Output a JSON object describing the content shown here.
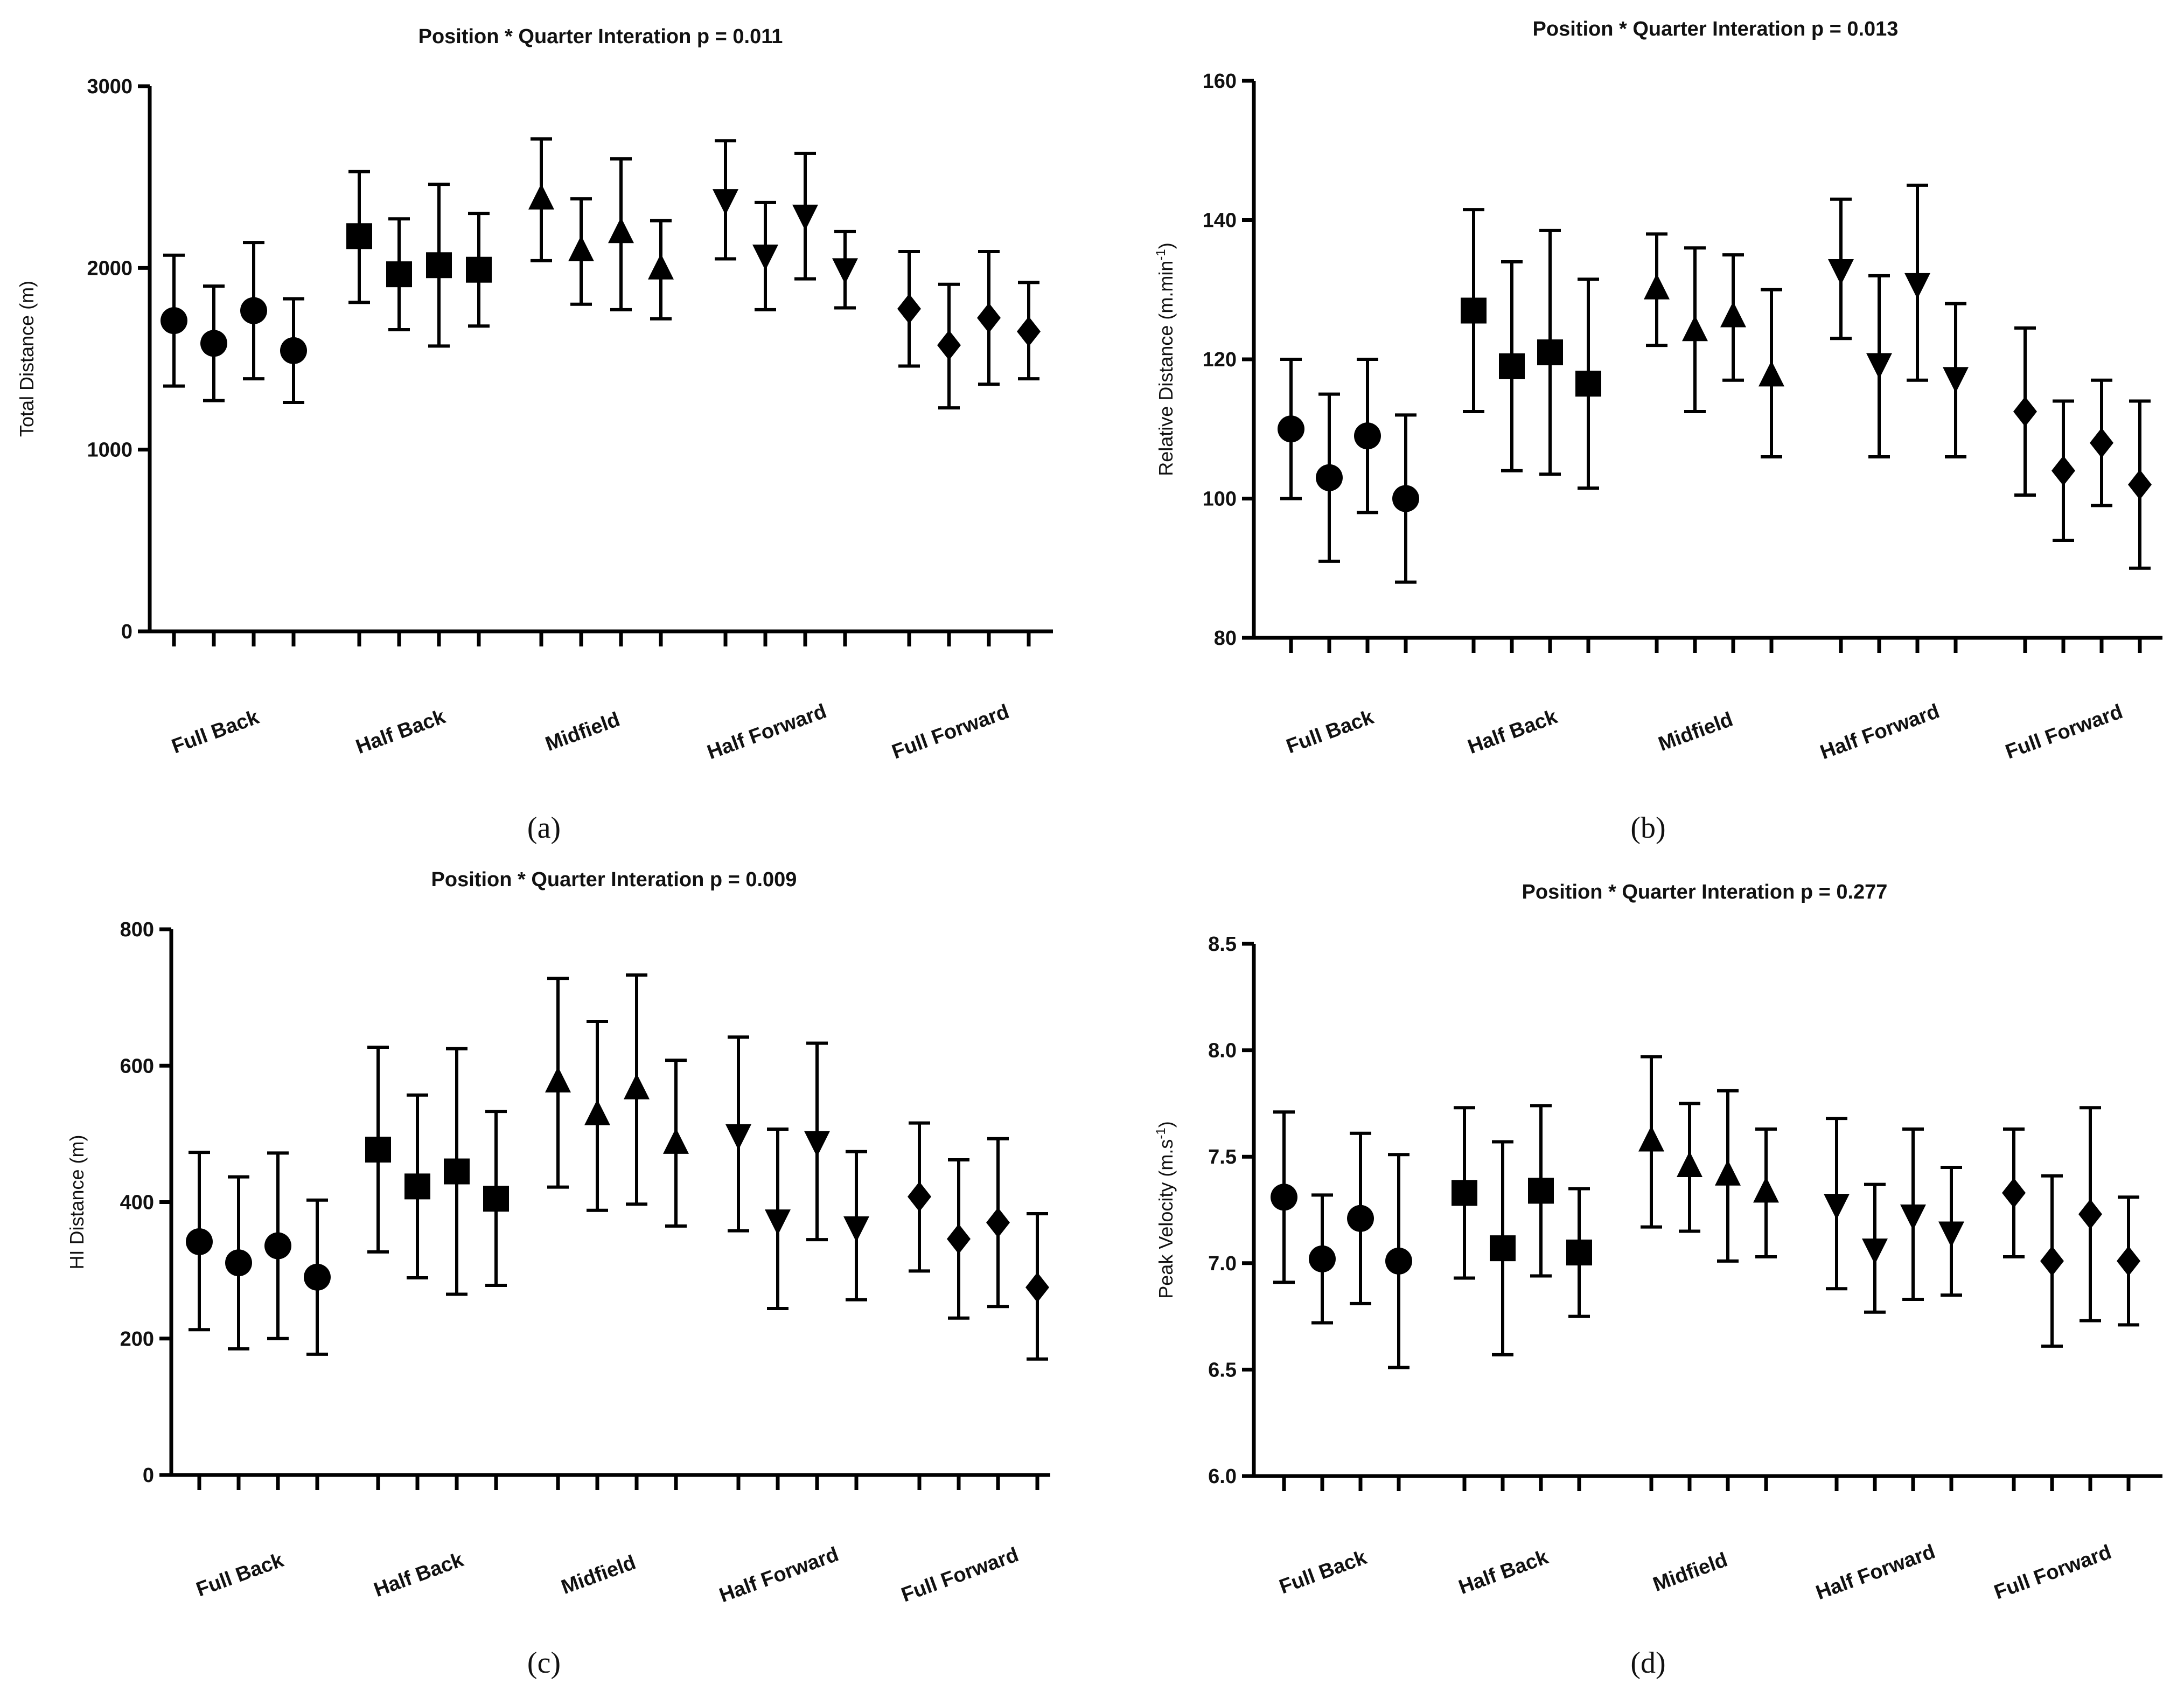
{
  "chart_data": [
    {
      "type": "scatter",
      "panel_label": "(a)",
      "title": "Position * Quarter Interation p = 0.011",
      "ylabel": "Total Distance (m)",
      "ylim": [
        0,
        3000
      ],
      "yticks": [
        0,
        1000,
        2000,
        3000
      ],
      "ytick_labels": [
        "0",
        "1000",
        "2000",
        "3000"
      ],
      "categories": [
        "Full Back",
        "Half Back",
        "Midfield",
        "Half Forward",
        "Full Forward"
      ],
      "markers": [
        "circle",
        "square",
        "triangle-up",
        "triangle-down",
        "diamond"
      ],
      "series": [
        {
          "name": "Full Back",
          "means": [
            1710,
            1585,
            1765,
            1545
          ],
          "upper": [
            2070,
            1900,
            2140,
            1830
          ],
          "lower": [
            1350,
            1270,
            1390,
            1260
          ]
        },
        {
          "name": "Half Back",
          "means": [
            2175,
            1965,
            2015,
            1990
          ],
          "upper": [
            2530,
            2270,
            2460,
            2300
          ],
          "lower": [
            1810,
            1660,
            1570,
            1680
          ]
        },
        {
          "name": "Midfield",
          "means": [
            2375,
            2090,
            2190,
            1990
          ],
          "upper": [
            2710,
            2380,
            2600,
            2260
          ],
          "lower": [
            2040,
            1800,
            1770,
            1720
          ]
        },
        {
          "name": "Half Forward",
          "means": [
            2380,
            2075,
            2295,
            2000
          ],
          "upper": [
            2700,
            2360,
            2630,
            2200
          ],
          "lower": [
            2050,
            1770,
            1940,
            1780
          ]
        },
        {
          "name": "Full Forward",
          "means": [
            1775,
            1575,
            1725,
            1650
          ],
          "upper": [
            2090,
            1910,
            2090,
            1920
          ],
          "lower": [
            1460,
            1230,
            1360,
            1390
          ]
        }
      ]
    },
    {
      "type": "scatter",
      "panel_label": "(b)",
      "title": "Position * Quarter Interation p = 0.013",
      "ylabel": "Relative Distance (m.min",
      "ylabel_sup": "-1",
      "ylabel_end": ")",
      "ylim": [
        80,
        160
      ],
      "yticks": [
        80,
        100,
        120,
        140,
        160
      ],
      "ytick_labels": [
        "80",
        "100",
        "120",
        "140",
        "160"
      ],
      "categories": [
        "Full Back",
        "Half Back",
        "Midfield",
        "Half Forward",
        "Full Forward"
      ],
      "markers": [
        "circle",
        "square",
        "triangle-up",
        "triangle-down",
        "diamond"
      ],
      "series": [
        {
          "name": "Full Back",
          "means": [
            110,
            103,
            109,
            100
          ],
          "upper": [
            120,
            115,
            120,
            112
          ],
          "lower": [
            100,
            91,
            98,
            88
          ]
        },
        {
          "name": "Half Back",
          "means": [
            127,
            119,
            121,
            116.5
          ],
          "upper": [
            141.5,
            134,
            138.5,
            131.5
          ],
          "lower": [
            112.5,
            104,
            103.5,
            101.5
          ]
        },
        {
          "name": "Midfield",
          "means": [
            130,
            124,
            126,
            117.5
          ],
          "upper": [
            138,
            136,
            135,
            130
          ],
          "lower": [
            122,
            112.5,
            117,
            106
          ]
        },
        {
          "name": "Half Forward",
          "means": [
            133,
            119.5,
            131,
            117.5
          ],
          "upper": [
            143,
            132,
            145,
            128
          ],
          "lower": [
            123,
            106,
            117,
            106
          ]
        },
        {
          "name": "Full Forward",
          "means": [
            112.5,
            104,
            108,
            102
          ],
          "upper": [
            124.5,
            114,
            117,
            114
          ],
          "lower": [
            100.5,
            94,
            99,
            90
          ]
        }
      ]
    },
    {
      "type": "scatter",
      "panel_label": "(c)",
      "title": "Position * Quarter Interation p = 0.009",
      "ylabel": "HI Distance (m)",
      "ylim": [
        0,
        800
      ],
      "yticks": [
        0,
        200,
        400,
        600,
        800
      ],
      "ytick_labels": [
        "0",
        "200",
        "400",
        "600",
        "800"
      ],
      "categories": [
        "Full Back",
        "Half Back",
        "Midfield",
        "Half Forward",
        "Full Forward"
      ],
      "markers": [
        "circle",
        "square",
        "triangle-up",
        "triangle-down",
        "diamond"
      ],
      "series": [
        {
          "name": "Full Back",
          "means": [
            342,
            311,
            336,
            290
          ],
          "upper": [
            473,
            437,
            472,
            403
          ],
          "lower": [
            213,
            185,
            200,
            177
          ]
        },
        {
          "name": "Half Back",
          "means": [
            477,
            423,
            445,
            405
          ],
          "upper": [
            627,
            557,
            625,
            533
          ],
          "lower": [
            327,
            289,
            265,
            278
          ]
        },
        {
          "name": "Midfield",
          "means": [
            575,
            527,
            565,
            485
          ],
          "upper": [
            728,
            665,
            733,
            608
          ],
          "lower": [
            422,
            388,
            397,
            365
          ]
        },
        {
          "name": "Half Forward",
          "means": [
            500,
            375,
            490,
            365
          ],
          "upper": [
            642,
            507,
            633,
            474
          ],
          "lower": [
            358,
            244,
            345,
            257
          ]
        },
        {
          "name": "Full Forward",
          "means": [
            408,
            346,
            370,
            275
          ],
          "upper": [
            516,
            462,
            493,
            383
          ],
          "lower": [
            299,
            230,
            247,
            170
          ]
        }
      ]
    },
    {
      "type": "scatter",
      "panel_label": "(d)",
      "title": "Position * Quarter Interation p = 0.277",
      "ylabel": "Peak Velocity (m.s",
      "ylabel_sup": "-1",
      "ylabel_end": ")",
      "ylim": [
        6.0,
        8.5
      ],
      "yticks": [
        6.0,
        6.5,
        7.0,
        7.5,
        8.0,
        8.5
      ],
      "ytick_labels": [
        "6.0",
        "6.5",
        "7.0",
        "7.5",
        "8.0",
        "8.5"
      ],
      "categories": [
        "Full Back",
        "Half Back",
        "Midfield",
        "Half Forward",
        "Full Forward"
      ],
      "markers": [
        "circle",
        "square",
        "triangle-up",
        "triangle-down",
        "diamond"
      ],
      "series": [
        {
          "name": "Full Back",
          "means": [
            7.31,
            7.02,
            7.21,
            7.01
          ],
          "upper": [
            7.71,
            7.32,
            7.61,
            7.51
          ],
          "lower": [
            6.91,
            6.72,
            6.81,
            6.51
          ]
        },
        {
          "name": "Half Back",
          "means": [
            7.33,
            7.07,
            7.34,
            7.05
          ],
          "upper": [
            7.73,
            7.57,
            7.74,
            7.35
          ],
          "lower": [
            6.93,
            6.57,
            6.94,
            6.75
          ]
        },
        {
          "name": "Midfield",
          "means": [
            7.57,
            7.45,
            7.41,
            7.33
          ],
          "upper": [
            7.97,
            7.75,
            7.81,
            7.63
          ],
          "lower": [
            7.17,
            7.15,
            7.01,
            7.03
          ]
        },
        {
          "name": "Half Forward",
          "means": [
            7.28,
            7.07,
            7.23,
            7.15
          ],
          "upper": [
            7.68,
            7.37,
            7.63,
            7.45
          ],
          "lower": [
            6.88,
            6.77,
            6.83,
            6.85
          ]
        },
        {
          "name": "Full Forward",
          "means": [
            7.33,
            7.01,
            7.23,
            7.01
          ],
          "upper": [
            7.63,
            7.41,
            7.73,
            7.31
          ],
          "lower": [
            7.03,
            6.61,
            6.73,
            6.71
          ]
        }
      ]
    }
  ]
}
